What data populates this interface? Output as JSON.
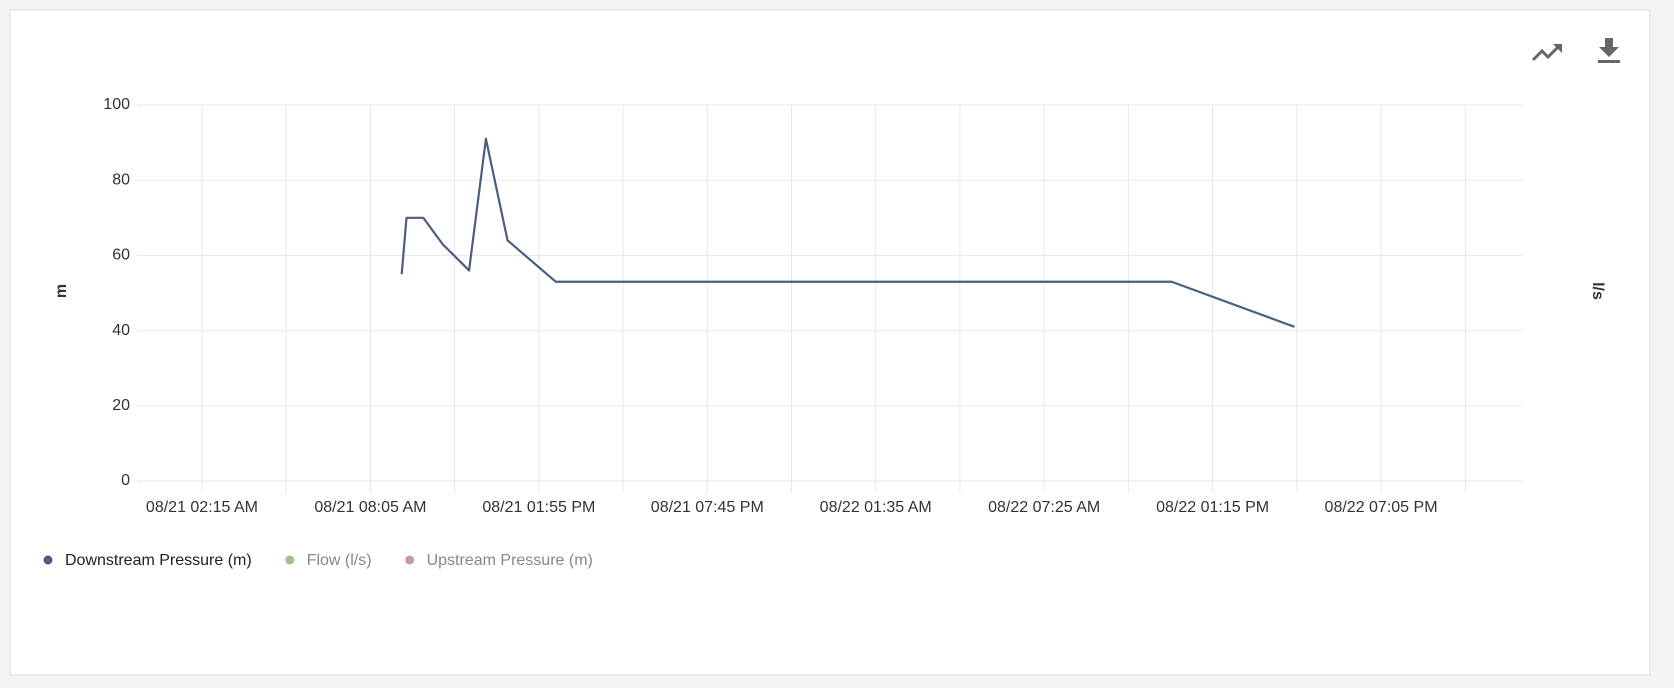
{
  "chart_data": {
    "type": "line",
    "y_label": "m",
    "y2_label": "l/s",
    "x": [
      "08/21 09:10 AM",
      "08/21 09:20 AM",
      "08/21 09:55 AM",
      "08/21 10:35 AM",
      "08/21 11:30 AM",
      "08/21 12:05 PM",
      "08/21 12:50 PM",
      "08/21 02:30 PM",
      "08/22 11:50 AM",
      "08/22 04:05 PM"
    ],
    "series": [
      {
        "name": "Downstream Pressure (m)",
        "color": "#4a5f80",
        "values": [
          55,
          70,
          70,
          63,
          56,
          91,
          64,
          53,
          53,
          41
        ]
      },
      {
        "name": "Flow (l/s)",
        "color": "#9fc28f",
        "axis": "y2",
        "values": [
          null,
          null,
          null,
          null,
          null,
          null,
          null,
          null,
          null,
          null
        ]
      },
      {
        "name": "Upstream Pressure (m)",
        "color": "#c49aa8",
        "values": [
          null,
          null,
          null,
          null,
          null,
          null,
          null,
          null,
          null,
          null
        ]
      }
    ],
    "xlim": [
      "08/21 12:00 AM",
      "08/23 12:00 AM"
    ],
    "xticks": [
      "08/21 02:15 AM",
      "08/21 08:05 AM",
      "08/21 01:55 PM",
      "08/21 07:45 PM",
      "08/22 01:35 AM",
      "08/22 07:25 AM",
      "08/22 01:15 PM",
      "08/22 07:05 PM"
    ],
    "ylim": [
      0,
      100
    ],
    "yticks": [
      0,
      20,
      40,
      60,
      80,
      100
    ],
    "grid": true
  }
}
